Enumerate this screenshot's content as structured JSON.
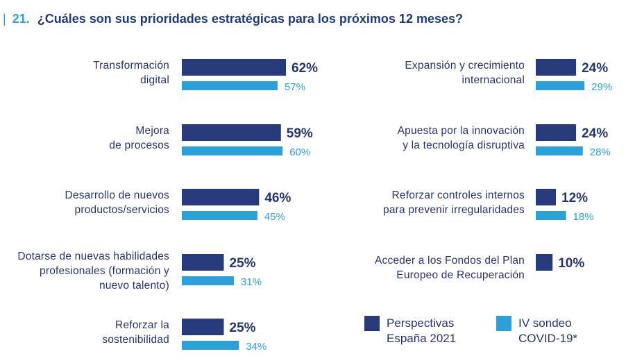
{
  "title": {
    "bar": "|",
    "number": "21.",
    "text": "¿Cuáles son sus prioridades estratégicas para los próximos 12 meses?"
  },
  "colors": {
    "series1": "#273a7b",
    "series2": "#2d9fd9",
    "text": "#26356d"
  },
  "legend": [
    {
      "label": "Perspectivas\nEspaña 2021",
      "color": "#273a7b"
    },
    {
      "label": "IV sondeo\nCOVID-19*",
      "color": "#2d9fd9"
    }
  ],
  "chart_data": {
    "type": "bar",
    "orientation": "horizontal",
    "series": [
      {
        "name": "Perspectivas España 2021"
      },
      {
        "name": "IV sondeo COVID-19*"
      }
    ],
    "panels": [
      {
        "categories": [
          {
            "label": [
              "Transformación",
              "digital"
            ],
            "values": [
              62,
              57
            ]
          },
          {
            "label": [
              "Mejora",
              "de procesos"
            ],
            "values": [
              59,
              60
            ]
          },
          {
            "label": [
              "Desarrollo de nuevos",
              "productos/servicios"
            ],
            "values": [
              46,
              45
            ]
          },
          {
            "label": [
              "Dotarse de nuevas habilidades",
              "profesionales (formación y",
              "nuevo talento)"
            ],
            "values": [
              25,
              31
            ]
          },
          {
            "label": [
              "Reforzar la",
              "sostenibilidad"
            ],
            "values": [
              25,
              34
            ]
          }
        ]
      },
      {
        "categories": [
          {
            "label": [
              "Expansión y crecimiento",
              "internacional"
            ],
            "values": [
              24,
              29
            ]
          },
          {
            "label": [
              "Apuesta por la innovación",
              "y la tecnología disruptiva"
            ],
            "values": [
              24,
              28
            ]
          },
          {
            "label": [
              "Reforzar controles internos",
              "para prevenir irregularidades"
            ],
            "values": [
              12,
              18
            ]
          },
          {
            "label": [
              "Acceder a los Fondos del Plan",
              "Europeo de Recuperación"
            ],
            "values": [
              10,
              null
            ]
          }
        ]
      }
    ],
    "value_suffix": "%",
    "legend_position": "bottom-right",
    "grid": false
  }
}
